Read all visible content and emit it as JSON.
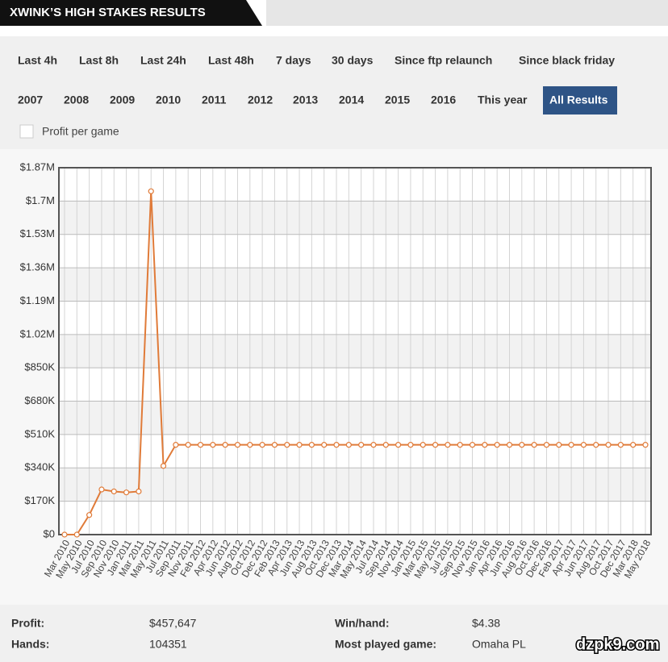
{
  "header": {
    "title": "XWINK’S HIGH STAKES RESULTS"
  },
  "filters": {
    "periods": [
      "Last 4h",
      "Last 8h",
      "Last 24h",
      "Last 48h",
      "7 days",
      "30 days",
      "Since ftp relaunch",
      "Since black friday"
    ],
    "years": [
      "2007",
      "2008",
      "2009",
      "2010",
      "2011",
      "2012",
      "2013",
      "2014",
      "2015",
      "2016",
      "This year",
      "All Results"
    ],
    "selected_year_index": 11,
    "checkbox": {
      "label": "Profit per game",
      "checked": false
    }
  },
  "chart_data": {
    "type": "line",
    "categories": [
      "Mar 2010",
      "May 2010",
      "Jul 2010",
      "Sep 2010",
      "Nov 2010",
      "Jan 2011",
      "Mar 2011",
      "May 2011",
      "Jul 2011",
      "Sep 2011",
      "Nov 2011",
      "Feb 2012",
      "Apr 2012",
      "Jun 2012",
      "Aug 2012",
      "Oct 2012",
      "Dec 2012",
      "Feb 2013",
      "Apr 2013",
      "Jun 2013",
      "Aug 2013",
      "Oct 2013",
      "Dec 2013",
      "Mar 2014",
      "May 2014",
      "Jul 2014",
      "Sep 2014",
      "Nov 2014",
      "Jan 2015",
      "Mar 2015",
      "May 2015",
      "Jul 2015",
      "Sep 2015",
      "Nov 2015",
      "Jan 2016",
      "Apr 2016",
      "Jun 2016",
      "Aug 2016",
      "Oct 2016",
      "Dec 2016",
      "Feb 2017",
      "Apr 2017",
      "Jun 2017",
      "Aug 2017",
      "Oct 2017",
      "Dec 2017",
      "Mar 2018",
      "May 2018"
    ],
    "series": [
      {
        "color": "#e07b39",
        "values": [
          0,
          0,
          100000,
          230000,
          220000,
          215000,
          220000,
          1750000,
          350000,
          457647,
          457647,
          457647,
          457647,
          457647,
          457647,
          457647,
          457647,
          457647,
          457647,
          457647,
          457647,
          457647,
          457647,
          457647,
          457647,
          457647,
          457647,
          457647,
          457647,
          457647,
          457647,
          457647,
          457647,
          457647,
          457647,
          457647,
          457647,
          457647,
          457647,
          457647,
          457647,
          457647,
          457647,
          457647,
          457647,
          457647,
          457647,
          457647
        ]
      }
    ],
    "ylim": [
      0,
      1870000
    ],
    "yticks": [
      {
        "value": 0,
        "label": "$0"
      },
      {
        "value": 170000,
        "label": "$170K"
      },
      {
        "value": 340000,
        "label": "$340K"
      },
      {
        "value": 510000,
        "label": "$510K"
      },
      {
        "value": 680000,
        "label": "$680K"
      },
      {
        "value": 850000,
        "label": "$850K"
      },
      {
        "value": 1020000,
        "label": "$1.02M"
      },
      {
        "value": 1190000,
        "label": "$1.19M"
      },
      {
        "value": 1360000,
        "label": "$1.36M"
      },
      {
        "value": 1530000,
        "label": "$1.53M"
      },
      {
        "value": 1700000,
        "label": "$1.7M"
      },
      {
        "value": 1870000,
        "label": "$1.87M"
      }
    ],
    "grid": true
  },
  "stats": [
    {
      "label": "Profit:",
      "value": "$457,647"
    },
    {
      "label": "Win/hand:",
      "value": "$4.38"
    },
    {
      "label": "Hands:",
      "value": "104351"
    },
    {
      "label": "Most played game:",
      "value": "Omaha PL"
    }
  ],
  "watermark": "dzpk9.com"
}
